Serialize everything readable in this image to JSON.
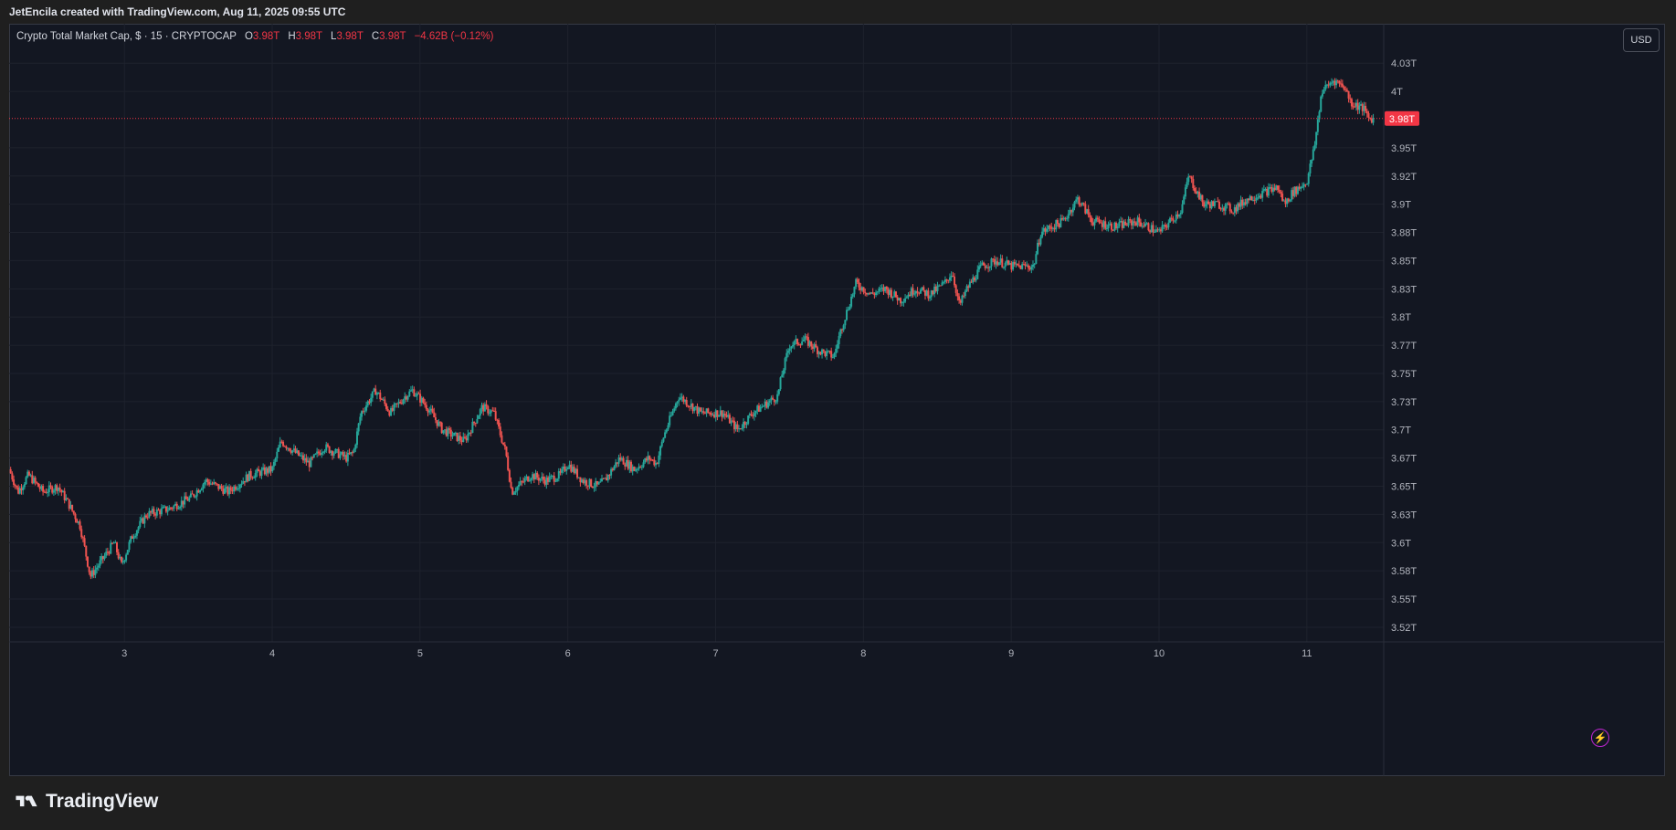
{
  "header": {
    "text": "JetEncila created with TradingView.com, Aug 11, 2025 09:55 UTC"
  },
  "legend": {
    "symbol": "Crypto Total Market Cap, $ · 15 · CRYPTOCAP",
    "o_label": "O",
    "o_value": "3.98T",
    "h_label": "H",
    "h_value": "3.98T",
    "l_label": "L",
    "l_value": "3.98T",
    "c_label": "C",
    "c_value": "3.98T",
    "change": "−4.62B (−0.12%)"
  },
  "currency_button": "USD",
  "brand": "TradingView",
  "colors": {
    "up": "#26a69a",
    "down": "#ef5350",
    "background": "#131722",
    "grid": "#1e222d",
    "last_price": "#f23645",
    "alert": "#d946ef"
  },
  "chart_data": {
    "type": "candlestick",
    "title": "Crypto Total Market Cap, $ · 15 · CRYPTOCAP",
    "x_axis": {
      "ticks": [
        "3",
        "4",
        "5",
        "6",
        "7",
        "8",
        "9",
        "10",
        "11"
      ],
      "unit": "day (Aug 2025)",
      "range": [
        2.22,
        11.52
      ]
    },
    "y_axis": {
      "ticks": [
        "3.52T",
        "3.55T",
        "3.58T",
        "3.6T",
        "3.63T",
        "3.65T",
        "3.67T",
        "3.7T",
        "3.73T",
        "3.75T",
        "3.77T",
        "3.8T",
        "3.83T",
        "3.85T",
        "3.88T",
        "3.9T",
        "3.92T",
        "3.95T",
        "4T",
        "4.03T"
      ],
      "tick_values": [
        3.525,
        3.55,
        3.575,
        3.6,
        3.625,
        3.65,
        3.675,
        3.7,
        3.725,
        3.75,
        3.775,
        3.8,
        3.825,
        3.85,
        3.875,
        3.9,
        3.925,
        3.95,
        4.0,
        4.025
      ],
      "range": [
        3.512,
        4.06
      ],
      "unit": "trillion USD"
    },
    "last_price": {
      "label": "3.98T",
      "value": 3.976
    },
    "grid": true,
    "path": [
      [
        2.22,
        3.665
      ],
      [
        2.28,
        3.645
      ],
      [
        2.35,
        3.66
      ],
      [
        2.45,
        3.645
      ],
      [
        2.55,
        3.65
      ],
      [
        2.62,
        3.635
      ],
      [
        2.7,
        3.615
      ],
      [
        2.77,
        3.57
      ],
      [
        2.85,
        3.585
      ],
      [
        2.93,
        3.6
      ],
      [
        2.98,
        3.58
      ],
      [
        3.05,
        3.605
      ],
      [
        3.15,
        3.625
      ],
      [
        3.3,
        3.63
      ],
      [
        3.45,
        3.64
      ],
      [
        3.55,
        3.655
      ],
      [
        3.7,
        3.645
      ],
      [
        3.85,
        3.66
      ],
      [
        4.0,
        3.665
      ],
      [
        4.06,
        3.69
      ],
      [
        4.2,
        3.675
      ],
      [
        4.25,
        3.67
      ],
      [
        4.35,
        3.685
      ],
      [
        4.5,
        3.675
      ],
      [
        4.55,
        3.68
      ],
      [
        4.6,
        3.715
      ],
      [
        4.7,
        3.735
      ],
      [
        4.8,
        3.715
      ],
      [
        4.9,
        3.73
      ],
      [
        4.95,
        3.735
      ],
      [
        5.05,
        3.72
      ],
      [
        5.15,
        3.7
      ],
      [
        5.3,
        3.69
      ],
      [
        5.42,
        3.72
      ],
      [
        5.5,
        3.715
      ],
      [
        5.58,
        3.68
      ],
      [
        5.62,
        3.645
      ],
      [
        5.75,
        3.66
      ],
      [
        5.85,
        3.655
      ],
      [
        5.95,
        3.66
      ],
      [
        6.0,
        3.67
      ],
      [
        6.1,
        3.655
      ],
      [
        6.2,
        3.65
      ],
      [
        6.25,
        3.655
      ],
      [
        6.35,
        3.675
      ],
      [
        6.45,
        3.665
      ],
      [
        6.55,
        3.675
      ],
      [
        6.6,
        3.67
      ],
      [
        6.65,
        3.695
      ],
      [
        6.75,
        3.73
      ],
      [
        6.9,
        3.715
      ],
      [
        7.05,
        3.715
      ],
      [
        7.15,
        3.7
      ],
      [
        7.25,
        3.715
      ],
      [
        7.42,
        3.73
      ],
      [
        7.45,
        3.75
      ],
      [
        7.5,
        3.775
      ],
      [
        7.6,
        3.78
      ],
      [
        7.7,
        3.77
      ],
      [
        7.8,
        3.765
      ],
      [
        7.82,
        3.775
      ],
      [
        7.85,
        3.79
      ],
      [
        7.95,
        3.83
      ],
      [
        8.05,
        3.82
      ],
      [
        8.15,
        3.825
      ],
      [
        8.25,
        3.815
      ],
      [
        8.35,
        3.825
      ],
      [
        8.45,
        3.82
      ],
      [
        8.55,
        3.83
      ],
      [
        8.6,
        3.84
      ],
      [
        8.65,
        3.81
      ],
      [
        8.7,
        3.825
      ],
      [
        8.8,
        3.845
      ],
      [
        8.9,
        3.85
      ],
      [
        9.0,
        3.845
      ],
      [
        9.15,
        3.845
      ],
      [
        9.2,
        3.875
      ],
      [
        9.35,
        3.885
      ],
      [
        9.45,
        3.905
      ],
      [
        9.55,
        3.885
      ],
      [
        9.7,
        3.88
      ],
      [
        9.85,
        3.885
      ],
      [
        10.0,
        3.875
      ],
      [
        10.15,
        3.895
      ],
      [
        10.2,
        3.925
      ],
      [
        10.3,
        3.9
      ],
      [
        10.4,
        3.9
      ],
      [
        10.5,
        3.895
      ],
      [
        10.6,
        3.905
      ],
      [
        10.7,
        3.91
      ],
      [
        10.8,
        3.915
      ],
      [
        10.85,
        3.9
      ],
      [
        10.9,
        3.91
      ],
      [
        11.0,
        3.92
      ],
      [
        11.05,
        3.95
      ],
      [
        11.1,
        4.0
      ],
      [
        11.18,
        4.01
      ],
      [
        11.25,
        4.005
      ],
      [
        11.3,
        3.99
      ],
      [
        11.38,
        3.985
      ],
      [
        11.42,
        3.976
      ],
      [
        11.45,
        3.976
      ]
    ]
  }
}
